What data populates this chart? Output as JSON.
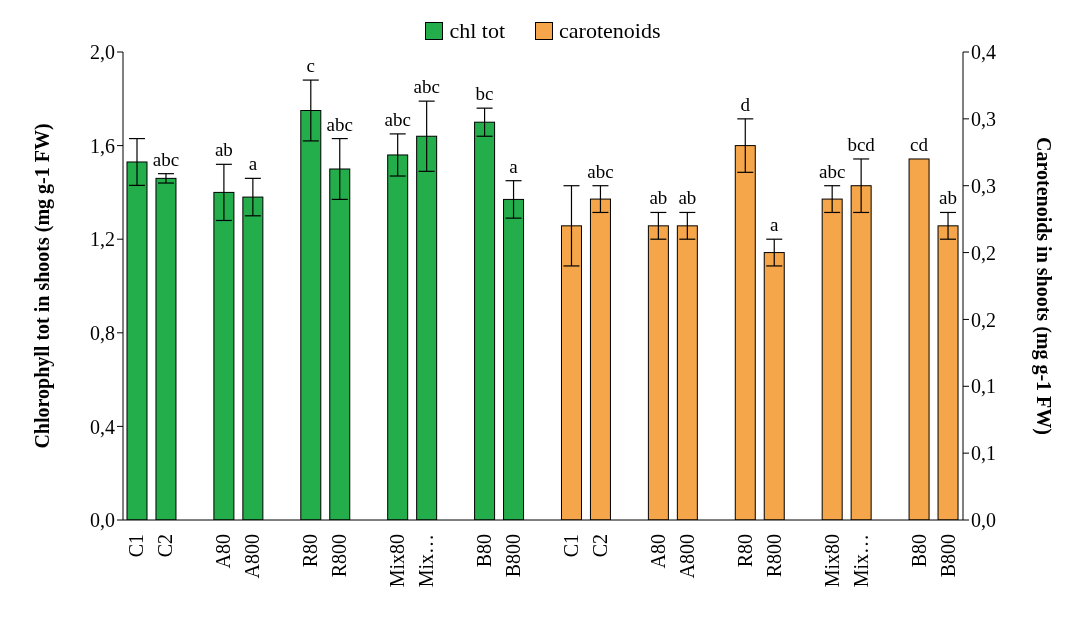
{
  "chart_data": {
    "type": "bar",
    "legend": "top",
    "ylabel": "Chlorophyll tot in shoots (mg g-1 FW)",
    "y2label": "Carotenoids in shoots (mg g-1 FW)",
    "categories": [
      "C1",
      "C2",
      null,
      "A80",
      "A800",
      null,
      "R80",
      "R800",
      null,
      "Mix80",
      "Mix…",
      null,
      "B80",
      "B800",
      null,
      "C1",
      "C2",
      null,
      "A80",
      "A800",
      null,
      "R80",
      "R800",
      null,
      "Mix80",
      "Mix…",
      null,
      "B80",
      "B800"
    ],
    "ylim": [
      0,
      2.0
    ],
    "yticks": [
      {
        "value": 0,
        "label": "0,0"
      },
      {
        "value": 0.4,
        "label": "0,4"
      },
      {
        "value": 0.8,
        "label": "0,8"
      },
      {
        "value": 1.2,
        "label": "1,2"
      },
      {
        "value": 1.6,
        "label": "1,6"
      },
      {
        "value": 2.0,
        "label": "2,0"
      }
    ],
    "y2lim": [
      0,
      0.35
    ],
    "y2ticks": [
      {
        "value": 0,
        "label": "0,0"
      },
      {
        "value": 0.05,
        "label": "0,1"
      },
      {
        "value": 0.1,
        "label": "0,1"
      },
      {
        "value": 0.15,
        "label": "0,2"
      },
      {
        "value": 0.2,
        "label": "0,2"
      },
      {
        "value": 0.25,
        "label": "0,3"
      },
      {
        "value": 0.3,
        "label": "0,3"
      },
      {
        "value": 0.35,
        "label": "0,4"
      }
    ],
    "series": [
      {
        "name": "chl tot",
        "color": "#23ae4b",
        "values": [
          1.53,
          1.46,
          null,
          1.4,
          1.38,
          null,
          1.75,
          1.5,
          null,
          1.56,
          1.64,
          null,
          1.7,
          1.37,
          null,
          null,
          null,
          null,
          null,
          null,
          null,
          null,
          null,
          null,
          null,
          null,
          null,
          null,
          null
        ],
        "errors": [
          0.1,
          0.02,
          null,
          0.12,
          0.08,
          null,
          0.13,
          0.13,
          null,
          0.09,
          0.15,
          null,
          0.06,
          0.08,
          null,
          null,
          null,
          null,
          null,
          null,
          null,
          null,
          null,
          null,
          null,
          null,
          null,
          null,
          null
        ],
        "value_labels": [
          null,
          "abc",
          null,
          "ab",
          "a",
          null,
          "c",
          "abc",
          null,
          "abc",
          "abc",
          null,
          "bc",
          "a",
          null,
          null,
          null,
          null,
          null,
          null,
          null,
          null,
          null,
          null,
          null,
          null,
          null,
          null,
          null
        ]
      },
      {
        "name": "carotenoids",
        "color": "#f5a64a",
        "axis": "y2",
        "values": [
          null,
          null,
          null,
          null,
          null,
          null,
          null,
          null,
          null,
          null,
          null,
          null,
          null,
          null,
          null,
          0.22,
          0.24,
          null,
          0.22,
          0.22,
          null,
          0.28,
          0.2,
          null,
          0.24,
          0.25,
          null,
          0.27,
          0.22
        ],
        "errors": [
          null,
          null,
          null,
          null,
          null,
          null,
          null,
          null,
          null,
          null,
          null,
          null,
          null,
          null,
          null,
          0.03,
          0.01,
          null,
          0.01,
          0.01,
          null,
          0.02,
          0.01,
          null,
          0.01,
          0.02,
          null,
          null,
          0.01
        ],
        "value_labels": [
          null,
          null,
          null,
          null,
          null,
          null,
          null,
          null,
          null,
          null,
          null,
          null,
          null,
          null,
          null,
          null,
          "abc",
          null,
          "ab",
          "ab",
          null,
          "d",
          "a",
          null,
          "abc",
          "bcd",
          null,
          "cd",
          "ab"
        ]
      }
    ]
  }
}
